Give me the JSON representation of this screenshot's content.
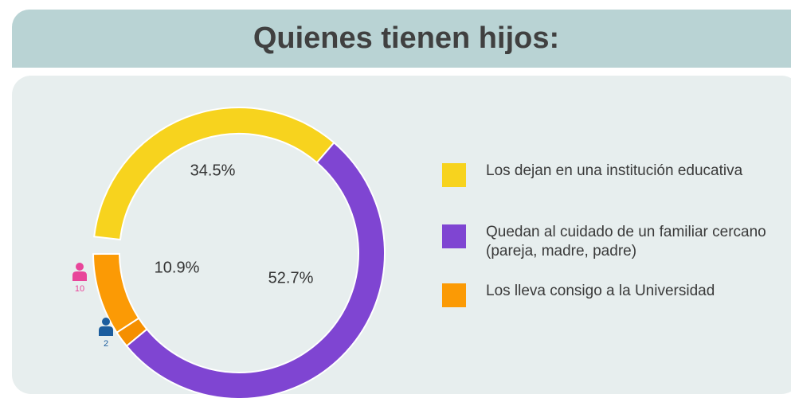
{
  "chart_data": {
    "type": "donut",
    "title": "Quienes tienen hijos:",
    "categories": [
      "Los dejan en una institución educativa",
      "Quedan al cuidado de un familiar cercano (pareja, madre, padre)",
      "Los lleva consigo a la Universidad"
    ],
    "values": [
      34.5,
      52.7,
      10.9
    ],
    "value_labels": [
      "34.5%",
      "52.7%",
      "10.9%"
    ],
    "colors": [
      "#f7d31e",
      "#7f45d2",
      "#fb9a05"
    ],
    "breakdown": {
      "category": 2,
      "values": [
        10,
        2
      ],
      "colors": [
        "#e8459a",
        "#1c5d9e"
      ],
      "segment_colors": [
        "#fb9a05",
        "#f58f00"
      ]
    }
  }
}
